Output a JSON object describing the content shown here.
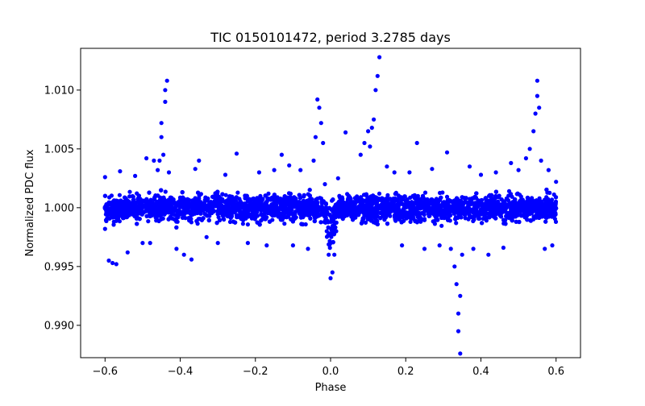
{
  "chart_data": {
    "type": "scatter",
    "title": "TIC 0150101472, period 3.2785 days",
    "xlabel": "Phase",
    "ylabel": "Normalized PDC flux",
    "xlim": [
      -0.665,
      0.665
    ],
    "ylim": [
      0.98725,
      1.01355
    ],
    "x_ticks": [
      -0.6,
      -0.4,
      -0.2,
      0.0,
      0.2,
      0.4,
      0.6
    ],
    "x_tick_labels": [
      "−0.6",
      "−0.4",
      "−0.2",
      "0.0",
      "0.2",
      "0.4",
      "0.6"
    ],
    "y_ticks": [
      0.99,
      0.995,
      1.0,
      1.005,
      1.01
    ],
    "y_tick_labels": [
      "0.990",
      "0.995",
      "1.000",
      "1.005",
      "1.010"
    ],
    "grid": false,
    "legend": "none",
    "marker_color": "#0000ff",
    "series": [
      {
        "phase_range": [
          -0.6,
          0.6
        ],
        "baseline_flux": 1.0,
        "scatter_band": [
          0.9975,
          1.0025
        ],
        "points": [
          [
            -0.6,
            0.9982
          ],
          [
            -0.6,
            1.0026
          ],
          [
            -0.59,
            0.9955
          ],
          [
            -0.58,
            0.9953
          ],
          [
            -0.57,
            0.9952
          ],
          [
            -0.56,
            1.0031
          ],
          [
            -0.54,
            0.9962
          ],
          [
            -0.52,
            1.0027
          ],
          [
            -0.5,
            0.997
          ],
          [
            -0.49,
            1.0042
          ],
          [
            -0.48,
            0.997
          ],
          [
            -0.47,
            1.004
          ],
          [
            -0.46,
            1.0032
          ],
          [
            -0.455,
            1.004
          ],
          [
            -0.45,
            1.006
          ],
          [
            -0.45,
            1.0072
          ],
          [
            -0.445,
            1.0045
          ],
          [
            -0.44,
            1.009
          ],
          [
            -0.44,
            1.01
          ],
          [
            -0.435,
            1.0108
          ],
          [
            -0.43,
            1.003
          ],
          [
            -0.41,
            0.9965
          ],
          [
            -0.39,
            0.996
          ],
          [
            -0.37,
            0.9956
          ],
          [
            -0.36,
            1.0033
          ],
          [
            -0.35,
            1.004
          ],
          [
            -0.33,
            0.9975
          ],
          [
            -0.3,
            0.997
          ],
          [
            -0.28,
            1.0028
          ],
          [
            -0.25,
            1.0046
          ],
          [
            -0.22,
            0.997
          ],
          [
            -0.19,
            1.003
          ],
          [
            -0.17,
            0.9968
          ],
          [
            -0.15,
            1.0032
          ],
          [
            -0.13,
            1.0045
          ],
          [
            -0.11,
            1.0036
          ],
          [
            -0.1,
            0.9968
          ],
          [
            -0.08,
            1.0032
          ],
          [
            -0.06,
            0.9965
          ],
          [
            -0.045,
            1.004
          ],
          [
            -0.04,
            1.006
          ],
          [
            -0.035,
            1.0092
          ],
          [
            -0.03,
            1.0085
          ],
          [
            -0.025,
            1.0072
          ],
          [
            -0.02,
            1.0055
          ],
          [
            -0.015,
            1.002
          ],
          [
            -0.01,
            0.998
          ],
          [
            -0.005,
            0.996
          ],
          [
            0.0,
            0.994
          ],
          [
            0.005,
            0.9945
          ],
          [
            0.01,
            0.996
          ],
          [
            0.015,
            0.998
          ],
          [
            0.02,
            1.0025
          ],
          [
            0.04,
            1.0064
          ],
          [
            0.08,
            1.0045
          ],
          [
            0.09,
            1.0055
          ],
          [
            0.1,
            1.0065
          ],
          [
            0.105,
            1.0052
          ],
          [
            0.11,
            1.0068
          ],
          [
            0.115,
            1.0075
          ],
          [
            0.12,
            1.01
          ],
          [
            0.125,
            1.0112
          ],
          [
            0.13,
            1.0128
          ],
          [
            0.15,
            1.0035
          ],
          [
            0.17,
            1.003
          ],
          [
            0.19,
            0.9968
          ],
          [
            0.21,
            1.003
          ],
          [
            0.23,
            1.0055
          ],
          [
            0.25,
            0.9965
          ],
          [
            0.27,
            1.0033
          ],
          [
            0.29,
            0.9968
          ],
          [
            0.31,
            1.0047
          ],
          [
            0.32,
            0.9965
          ],
          [
            0.33,
            0.995
          ],
          [
            0.335,
            0.9935
          ],
          [
            0.34,
            0.991
          ],
          [
            0.34,
            0.9895
          ],
          [
            0.345,
            0.9925
          ],
          [
            0.345,
            0.9876
          ],
          [
            0.35,
            0.996
          ],
          [
            0.37,
            1.0035
          ],
          [
            0.38,
            0.9965
          ],
          [
            0.4,
            1.0028
          ],
          [
            0.42,
            0.996
          ],
          [
            0.44,
            1.003
          ],
          [
            0.46,
            0.9966
          ],
          [
            0.48,
            1.0038
          ],
          [
            0.5,
            1.0032
          ],
          [
            0.52,
            1.0042
          ],
          [
            0.53,
            1.005
          ],
          [
            0.54,
            1.0065
          ],
          [
            0.545,
            1.008
          ],
          [
            0.55,
            1.0095
          ],
          [
            0.55,
            1.0108
          ],
          [
            0.555,
            1.0085
          ],
          [
            0.56,
            1.004
          ],
          [
            0.57,
            0.9965
          ],
          [
            0.58,
            1.0032
          ],
          [
            0.59,
            0.9968
          ],
          [
            0.6,
            1.0022
          ]
        ],
        "features": [
          {
            "phase": -0.44,
            "kind": "brightening",
            "peak_flux": 1.0108
          },
          {
            "phase": -0.035,
            "kind": "brightening",
            "peak_flux": 1.0092
          },
          {
            "phase": 0.0,
            "kind": "dip",
            "min_flux": 0.994
          },
          {
            "phase": 0.125,
            "kind": "brightening",
            "peak_flux": 1.0128
          },
          {
            "phase": 0.345,
            "kind": "dip",
            "min_flux": 0.9876
          },
          {
            "phase": 0.55,
            "kind": "brightening",
            "peak_flux": 1.0108
          }
        ]
      }
    ]
  }
}
